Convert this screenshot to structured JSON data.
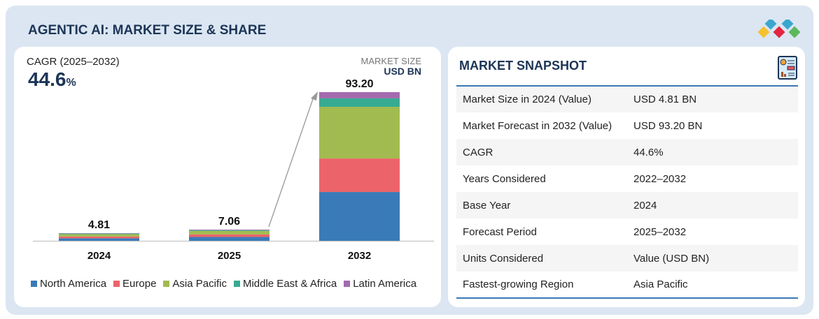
{
  "header": {
    "title": "AGENTIC AI: MARKET SIZE & SHARE"
  },
  "left": {
    "cagr_label": "CAGR (2025–2032)",
    "cagr_value": "44.6",
    "cagr_unit": "%",
    "market_size_label": "MARKET SIZE",
    "market_size_unit": "USD BN"
  },
  "chart_data": {
    "type": "bar",
    "stacked": true,
    "categories": [
      "2024",
      "2025",
      "2032"
    ],
    "totals": [
      "4.81",
      "7.06",
      "93.20"
    ],
    "series": [
      {
        "name": "North America",
        "color": "#3a7ab8",
        "values": [
          1.6,
          2.4,
          30.6
        ]
      },
      {
        "name": "Europe",
        "color": "#ec6469",
        "values": [
          1.1,
          1.6,
          21.0
        ]
      },
      {
        "name": "Asia Pacific",
        "color": "#a2bb50",
        "values": [
          1.5,
          2.2,
          32.4
        ]
      },
      {
        "name": "Middle East & Africa",
        "color": "#37ab91",
        "values": [
          0.35,
          0.5,
          5.3
        ]
      },
      {
        "name": "Latin America",
        "color": "#a46aae",
        "values": [
          0.26,
          0.36,
          3.9
        ]
      }
    ],
    "legend": "bottom",
    "grid": false,
    "ylim": [
      0,
      93.2
    ]
  },
  "snapshot": {
    "title": "MARKET SNAPSHOT",
    "icon": "report-document-icon",
    "rows": [
      [
        "Market Size in 2024 (Value)",
        "USD 4.81 BN"
      ],
      [
        "Market Forecast in 2032 (Value)",
        "USD 93.20 BN"
      ],
      [
        "CAGR",
        "44.6%"
      ],
      [
        "Years Considered",
        "2022–2032"
      ],
      [
        "Base Year",
        "2024"
      ],
      [
        "Forecast Period",
        "2025–2032"
      ],
      [
        "Units Considered",
        "Value (USD BN)"
      ],
      [
        "Fastest-growing Region",
        "Asia Pacific"
      ]
    ]
  }
}
